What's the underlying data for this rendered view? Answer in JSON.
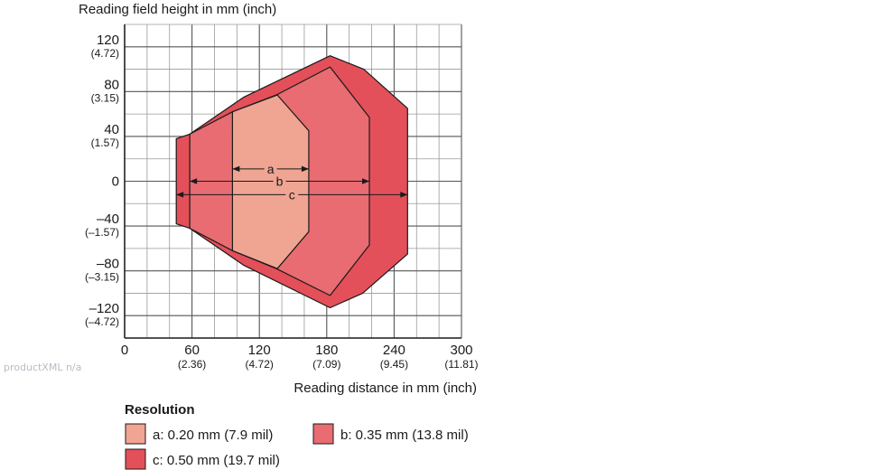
{
  "chart_data": {
    "type": "area",
    "ylabel": "Reading field height in mm (inch)",
    "xlabel": "Reading distance in mm (inch)",
    "xlim": [
      0,
      300
    ],
    "ylim": [
      -140,
      140
    ],
    "grid": true,
    "x_ticks": [
      {
        "value": 0,
        "label": "0",
        "sub": ""
      },
      {
        "value": 60,
        "label": "60",
        "sub": "(2.36)"
      },
      {
        "value": 120,
        "label": "120",
        "sub": "(4.72)"
      },
      {
        "value": 180,
        "label": "180",
        "sub": "(7.09)"
      },
      {
        "value": 240,
        "label": "240",
        "sub": "(9.45)"
      },
      {
        "value": 300,
        "label": "300",
        "sub": "(11.81)"
      }
    ],
    "y_ticks": [
      {
        "value": 120,
        "label": "120",
        "sub": "(4.72)"
      },
      {
        "value": 80,
        "label": "80",
        "sub": "(3.15)"
      },
      {
        "value": 40,
        "label": "40",
        "sub": "(1.57)"
      },
      {
        "value": 0,
        "label": "0",
        "sub": ""
      },
      {
        "value": -40,
        "label": "–40",
        "sub": "(–1.57)"
      },
      {
        "value": -80,
        "label": "–80",
        "sub": "(–3.15)"
      },
      {
        "value": -120,
        "label": "–120",
        "sub": "(–4.72)"
      }
    ],
    "series": [
      {
        "name": "c",
        "color": "#e3505a",
        "points": [
          [
            46,
            38
          ],
          [
            58,
            42
          ],
          [
            106,
            75
          ],
          [
            183,
            112
          ],
          [
            213,
            100
          ],
          [
            252,
            65
          ],
          [
            252,
            -65
          ],
          [
            212,
            -100
          ],
          [
            183,
            -113
          ],
          [
            106,
            -75
          ],
          [
            58,
            -42
          ],
          [
            46,
            -38
          ]
        ],
        "range": [
          46,
          252
        ],
        "range_y": -12
      },
      {
        "name": "b",
        "color": "#e86c72",
        "points": [
          [
            58,
            42
          ],
          [
            96,
            62
          ],
          [
            135,
            77
          ],
          [
            183,
            102
          ],
          [
            218,
            57
          ],
          [
            218,
            -57
          ],
          [
            183,
            -102
          ],
          [
            135,
            -78
          ],
          [
            96,
            -62
          ],
          [
            58,
            -42
          ]
        ],
        "range": [
          58,
          218
        ],
        "range_y": 0
      },
      {
        "name": "a",
        "color": "#f0a492",
        "points": [
          [
            96,
            62
          ],
          [
            136,
            77
          ],
          [
            164,
            45
          ],
          [
            164,
            -45
          ],
          [
            136,
            -78
          ],
          [
            96,
            -62
          ]
        ],
        "range": [
          96,
          164
        ],
        "range_y": 11
      }
    ]
  },
  "legend": {
    "title": "Resolution",
    "items": [
      {
        "label": "a: 0.20 mm (7.9 mil)",
        "color": "#f0a492"
      },
      {
        "label": "b: 0.35 mm (13.8 mil)",
        "color": "#e86c72"
      },
      {
        "label": "c: 0.50 mm (19.7 mil)",
        "color": "#e3505a"
      }
    ]
  },
  "watermark": "productXML n/a"
}
